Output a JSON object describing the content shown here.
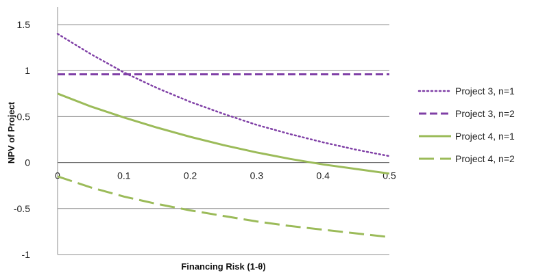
{
  "chart_data": {
    "type": "line",
    "xlabel": "Financing Risk (1-θ)",
    "ylabel": "NPV of Project",
    "xlim": [
      0,
      0.5
    ],
    "ylim": [
      -1,
      1.5
    ],
    "x_ticks": [
      "0",
      "0.1",
      "0.2",
      "0.3",
      "0.4",
      "0.5"
    ],
    "y_ticks": [
      "1.5",
      "1",
      "0.5",
      "0",
      "-0.5",
      "-1"
    ],
    "grid": "horizontal",
    "legend_position": "right",
    "x": [
      0,
      0.05,
      0.1,
      0.15,
      0.2,
      0.25,
      0.3,
      0.35,
      0.4,
      0.45,
      0.5
    ],
    "series": [
      {
        "name": "Project 3, n=1",
        "color": "#7f3fa6",
        "dash": "dotted",
        "values": [
          1.4,
          1.18,
          0.98,
          0.81,
          0.66,
          0.53,
          0.41,
          0.31,
          0.22,
          0.14,
          0.07
        ]
      },
      {
        "name": "Project 3, n=2",
        "color": "#7f3fa6",
        "dash": "dashed",
        "values": [
          0.96,
          0.96,
          0.96,
          0.96,
          0.96,
          0.96,
          0.96,
          0.96,
          0.96,
          0.96,
          0.96
        ]
      },
      {
        "name": "Project 4, n=1",
        "color": "#9bbb59",
        "dash": "solid",
        "values": [
          0.75,
          0.61,
          0.49,
          0.38,
          0.28,
          0.19,
          0.11,
          0.04,
          -0.02,
          -0.07,
          -0.12
        ]
      },
      {
        "name": "Project 4, n=2",
        "color": "#9bbb59",
        "dash": "longdash",
        "values": [
          -0.15,
          -0.27,
          -0.37,
          -0.45,
          -0.52,
          -0.58,
          -0.64,
          -0.69,
          -0.73,
          -0.77,
          -0.81
        ]
      }
    ]
  }
}
